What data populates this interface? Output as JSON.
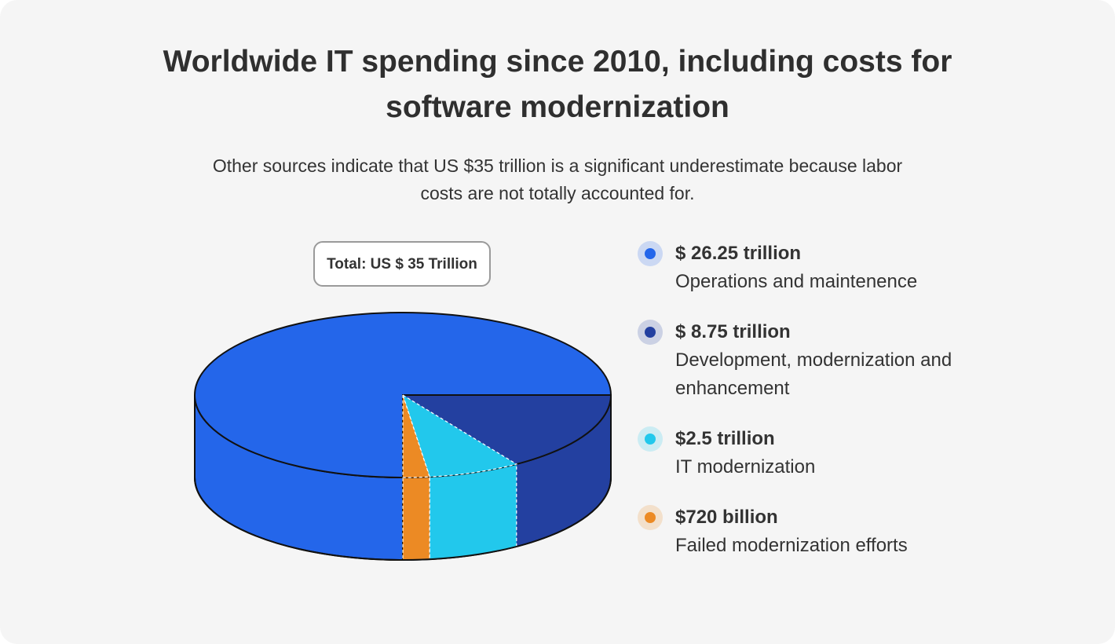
{
  "chart_data": {
    "type": "pie",
    "title": "Worldwide IT spending since 2010, including costs for software modernization",
    "subtitle": "Other sources indicate that US $35 trillion is a significant underestimate because labor costs are not totally accounted for.",
    "total_label": "Total: US $ 35 Trillion",
    "series": [
      {
        "name": "Operations and maintenence",
        "color": "#2466ea",
        "values": [
          26.25
        ],
        "value_labels": [
          "$ 26.25 trillion"
        ]
      },
      {
        "name": "Development, modernization and enhancement",
        "color": "#2340a0",
        "values": [
          8.75
        ],
        "value_labels": [
          "$ 8.75 trillion"
        ]
      },
      {
        "name": "IT modernization",
        "color": "#22c8ec",
        "values": [
          2.5
        ],
        "value_labels": [
          "$2.5 trillion"
        ]
      },
      {
        "name": "Failed modernization efforts",
        "color": "#ec8a24",
        "values": [
          0.72
        ],
        "value_labels": [
          "$720 billion"
        ]
      }
    ]
  }
}
